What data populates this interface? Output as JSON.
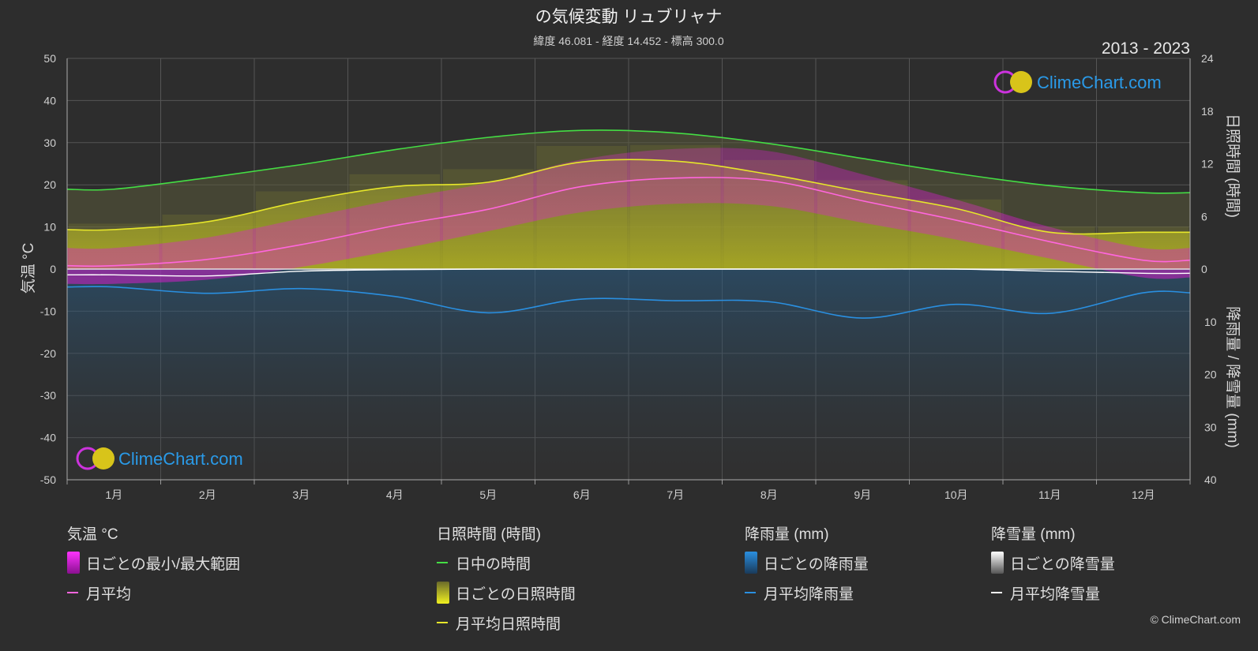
{
  "title": "の気候変動 リュブリャナ",
  "subtitle": "緯度 46.081 - 経度 14.452 - 標高 300.0",
  "period": "2013 - 2023",
  "brand": "ClimeChart.com",
  "copyright": "© ClimeChart.com",
  "colors": {
    "background": "#2d2d2d",
    "daylight": "#44dd44",
    "sunshine": "#e6e62a",
    "temp_avg": "#ff66dd",
    "temp_range": "#d21ec8",
    "rain": "#2a8fe0",
    "snow": "#ffffff"
  },
  "chart_data": {
    "type": "line",
    "categories": [
      "1月",
      "2月",
      "3月",
      "4月",
      "5月",
      "6月",
      "7月",
      "8月",
      "9月",
      "10月",
      "11月",
      "12月"
    ],
    "y_left": {
      "label": "気温 °C",
      "ticks": [
        50,
        40,
        30,
        20,
        10,
        0,
        -10,
        -20,
        -30,
        -40,
        -50
      ],
      "range": [
        -50,
        50
      ]
    },
    "y_right_top": {
      "label": "日照時間 (時間)",
      "ticks": [
        24,
        18,
        12,
        6,
        0
      ],
      "range": [
        0,
        24
      ]
    },
    "y_right_bottom": {
      "label": "降雨量 / 降雪量 (mm)",
      "ticks": [
        10,
        20,
        30,
        40
      ],
      "range": [
        0,
        40
      ]
    },
    "grid": true,
    "series": [
      {
        "name": "日中の時間",
        "axis": "sunshine_hours",
        "values": [
          9.1,
          10.4,
          11.9,
          13.6,
          15.0,
          15.8,
          15.5,
          14.3,
          12.6,
          10.9,
          9.5,
          8.7
        ]
      },
      {
        "name": "月平均日照時間",
        "axis": "sunshine_hours",
        "values": [
          4.5,
          5.4,
          7.7,
          9.4,
          9.9,
          12.2,
          12.3,
          10.8,
          8.8,
          6.9,
          4.2,
          4.2
        ]
      },
      {
        "name": "月平均",
        "axis": "temperature_c",
        "values": [
          0.8,
          2.3,
          5.8,
          10.3,
          14.2,
          19.6,
          21.6,
          21.0,
          16.2,
          11.6,
          6.5,
          2.1
        ]
      },
      {
        "name": "日ごとの最小/最大範囲",
        "axis": "temperature_c",
        "min": [
          -3.5,
          -2.5,
          0.5,
          4.5,
          9.0,
          13.5,
          15.5,
          15.0,
          11.0,
          7.0,
          2.5,
          -2.0
        ],
        "max": [
          5.0,
          7.5,
          12.0,
          16.5,
          20.5,
          26.0,
          28.5,
          28.0,
          22.5,
          16.5,
          10.0,
          5.0
        ]
      },
      {
        "name": "月平均降雨量",
        "axis": "precip_mm",
        "values": [
          3.4,
          4.6,
          3.7,
          5.2,
          8.3,
          5.7,
          6.0,
          6.2,
          9.3,
          6.7,
          8.4,
          4.5
        ]
      },
      {
        "name": "月平均降雪量",
        "axis": "precip_mm",
        "values": [
          1.1,
          1.3,
          0.4,
          0.1,
          0,
          0,
          0,
          0,
          0,
          0,
          0.4,
          0.8
        ]
      }
    ]
  },
  "legend": {
    "temperature": {
      "title": "気温 °C",
      "items": [
        "日ごとの最小/最大範囲",
        "月平均"
      ]
    },
    "sunshine": {
      "title": "日照時間 (時間)",
      "items": [
        "日中の時間",
        "日ごとの日照時間",
        "月平均日照時間"
      ]
    },
    "rain": {
      "title": "降雨量 (mm)",
      "items": [
        "日ごとの降雨量",
        "月平均降雨量"
      ]
    },
    "snow": {
      "title": "降雪量 (mm)",
      "items": [
        "日ごとの降雪量",
        "月平均降雪量"
      ]
    }
  }
}
